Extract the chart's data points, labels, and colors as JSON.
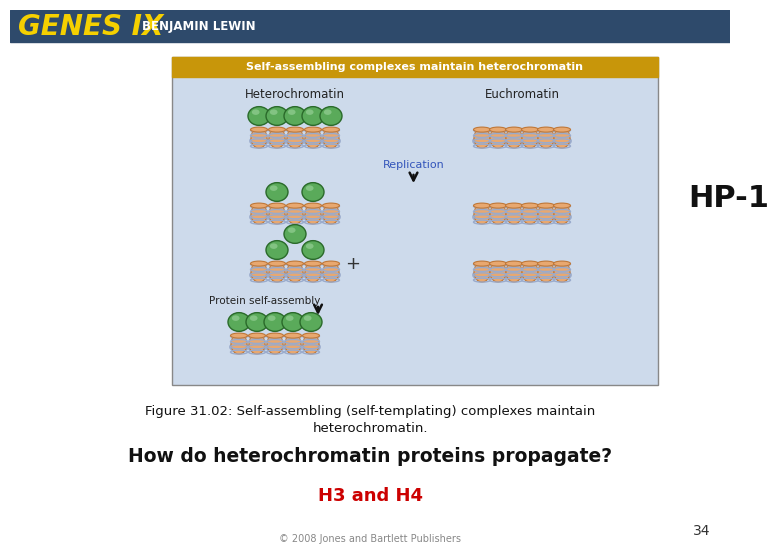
{
  "bg_color": "#ffffff",
  "header_bg": "#2e4a6b",
  "header_text_genes": "GENES IX",
  "header_text_author": "BENJAMIN LEWIN",
  "header_genes_color": "#f5d000",
  "header_author_color": "#ffffff",
  "diagram_box_color": "#cddaeb",
  "diagram_title_bg": "#c8960a",
  "diagram_title_text": "Self-assembling complexes maintain heterochromatin",
  "diagram_title_color": "#ffffff",
  "label_heterochromatin": "Heterochromatin",
  "label_euchromatin": "Euchromatin",
  "label_replication": "Replication",
  "label_protein_assembly": "Protein self-assembly",
  "label_plus": "+",
  "hp1_label": "HP-1",
  "figure_caption_line1": "Figure 31.02: Self-assembling (self-templating) complexes maintain",
  "figure_caption_line2": "heterochromatin.",
  "question_text": "How do heterochromatin proteins propagate?",
  "answer_text": "H3 and H4",
  "answer_color": "#cc0000",
  "page_number": "34",
  "copyright_text": "© 2008 Jones and Bartlett Publishers",
  "nucleosome_body_color": "#e8a870",
  "nucleosome_ring_color": "#9aabcc",
  "nucleosome_edge_color": "#c07838",
  "hp1_color_center": "#5aaa5a",
  "hp1_color_edge": "#2a6a2a",
  "arrow_color": "#111111",
  "replication_label_color": "#3355bb"
}
